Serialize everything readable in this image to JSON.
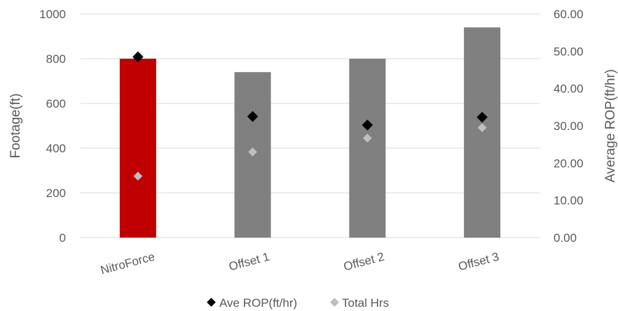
{
  "chart_data": {
    "type": "bar",
    "categories": [
      "NitroForce",
      "Offset 1",
      "Offset 2",
      "Offset 3"
    ],
    "footage": {
      "values": [
        800,
        740,
        800,
        940
      ],
      "colors": [
        "#c00000",
        "#808080",
        "#808080",
        "#808080"
      ]
    },
    "series": [
      {
        "name": "Ave ROP(ft/hr)",
        "axis": "right",
        "values": [
          48.5,
          32.5,
          30.2,
          32.3
        ],
        "color": "#000000"
      },
      {
        "name": "Total Hrs",
        "axis": "right",
        "values": [
          16.5,
          23.0,
          26.7,
          29.5
        ],
        "color": "#bfbfbf"
      }
    ],
    "ylabel": "Footage(ft)",
    "y2label": "Average ROP(ft/hr)",
    "ylim": [
      0,
      1000
    ],
    "y2lim": [
      0,
      60
    ],
    "yticks": [
      "0",
      "200",
      "400",
      "600",
      "800",
      "1000"
    ],
    "y2ticks": [
      "0.00",
      "10.00",
      "20.00",
      "30.00",
      "40.00",
      "50.00",
      "60.00"
    ],
    "grid": true,
    "legend": "bottom"
  }
}
